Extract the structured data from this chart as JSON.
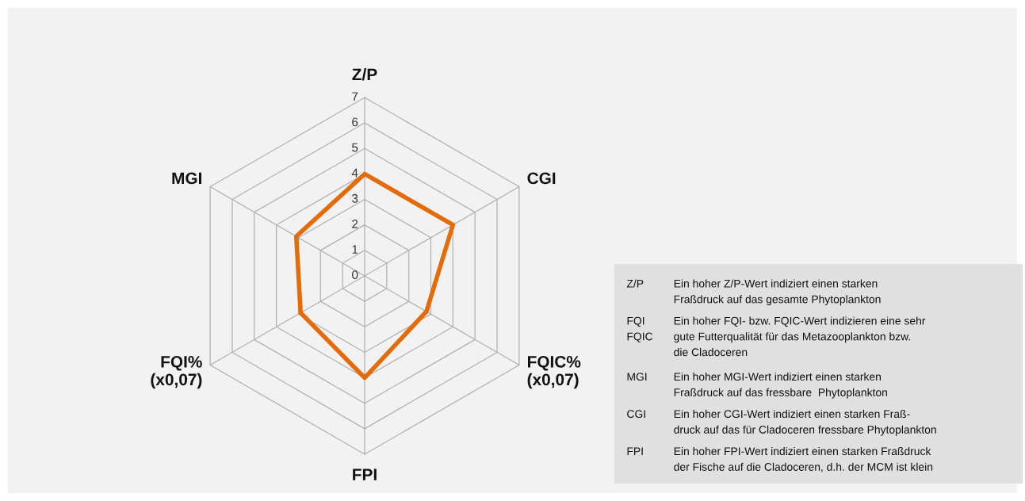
{
  "chart_data": {
    "type": "radar",
    "categories": [
      "Z/P",
      "CGI",
      "FQIC%\n(x0,07)",
      "FPI",
      "FQI%\n(x0,07)",
      "MGI"
    ],
    "series": [
      {
        "color": "#e36c09",
        "values": [
          4.0,
          4.0,
          2.8,
          4.0,
          2.9,
          3.1
        ]
      }
    ],
    "ylim": [
      0,
      7
    ],
    "yticks": [
      0,
      1,
      2,
      3,
      4,
      5,
      6,
      7
    ],
    "grid": true,
    "marker": "none",
    "line_style": "solid",
    "annotations": [
      "Z/P",
      "Ein hoher Z/P-Wert indiziert einen starken\nFraßdruck auf das gesamte Phytoplankton",
      "FQI\nFQIC",
      "Ein hoher FQI- bzw. FQIC-Wert indizieren eine sehr\ngute Futterqualität für das Metazooplankton bzw.\ndie Cladoceren",
      "MGI",
      "Ein hoher MGI-Wert indiziert einen starken\nFraßdruck auf das fressbare  Phytoplankton",
      "CGI",
      "Ein hoher CGI-Wert indiziert einen starken Fraß-\ndruck auf das für Cladoceren fressbare Phytoplankton",
      "FPI",
      "Ein hoher FPI-Wert indiziert einen starken Fraßdruck\nder Fische auf die Cladoceren, d.h. der MCM ist klein"
    ]
  }
}
